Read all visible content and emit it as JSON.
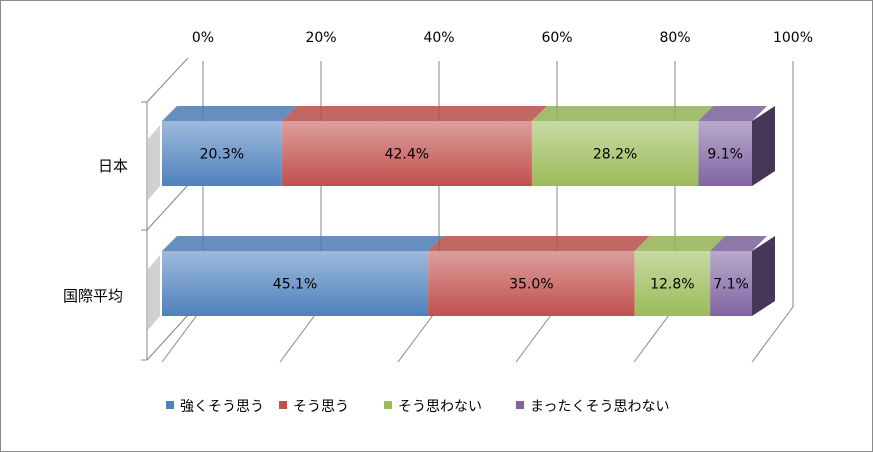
{
  "chart_data": {
    "type": "bar",
    "orientation": "horizontal",
    "stacked": "100%",
    "style": "3d",
    "categories": [
      "日本",
      "国際平均"
    ],
    "series": [
      {
        "name": "強くそう思う",
        "values": [
          20.3,
          45.1
        ],
        "labels": [
          "20.3%",
          "45.1%"
        ],
        "color": "#4f81bd"
      },
      {
        "name": "そう思う",
        "values": [
          42.4,
          35.0
        ],
        "labels": [
          "42.4%",
          "35.0%"
        ],
        "color": "#c0504d"
      },
      {
        "name": "そう思わない",
        "values": [
          28.2,
          12.8
        ],
        "labels": [
          "28.2%",
          "12.8%"
        ],
        "color": "#9bbb59"
      },
      {
        "name": "まったくそう思わない",
        "values": [
          9.1,
          7.1
        ],
        "labels": [
          "9.1%",
          "7.1%"
        ],
        "color": "#8064a2"
      }
    ],
    "xlim": [
      0,
      100
    ],
    "x_ticks": [
      "0%",
      "20%",
      "40%",
      "60%",
      "80%",
      "100%"
    ],
    "x_tick_values": [
      0,
      20,
      40,
      60,
      80,
      100
    ],
    "grid": true,
    "legend_position": "bottom"
  }
}
